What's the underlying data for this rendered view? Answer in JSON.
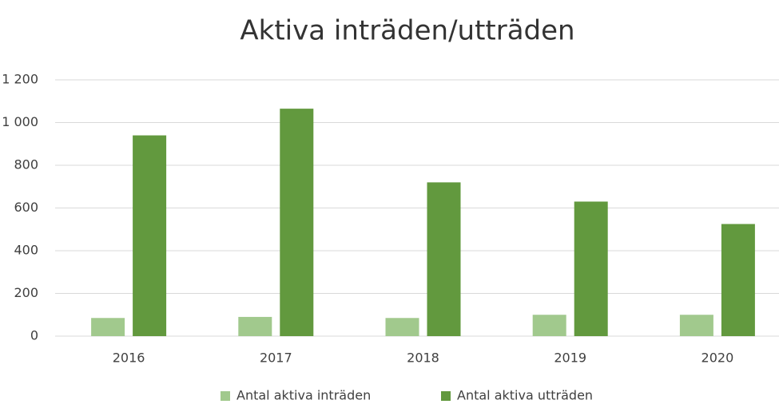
{
  "chart_data": {
    "type": "bar",
    "title": "Aktiva inträden/utträden",
    "categories": [
      "2016",
      "2017",
      "2018",
      "2019",
      "2020"
    ],
    "series": [
      {
        "name": "Antal aktiva inträden",
        "color": "#a1c98d",
        "values": [
          85,
          90,
          85,
          100,
          100
        ]
      },
      {
        "name": "Antal aktiva utträden",
        "color": "#62993e",
        "values": [
          940,
          1065,
          720,
          630,
          525
        ]
      }
    ],
    "ylim": [
      0,
      1200
    ],
    "yticks": [
      0,
      200,
      400,
      600,
      800,
      {
        "value": 1000,
        "label": "1 000"
      },
      {
        "value": 1200,
        "label": "1 200"
      }
    ],
    "grid": true,
    "legend": "bottom"
  }
}
